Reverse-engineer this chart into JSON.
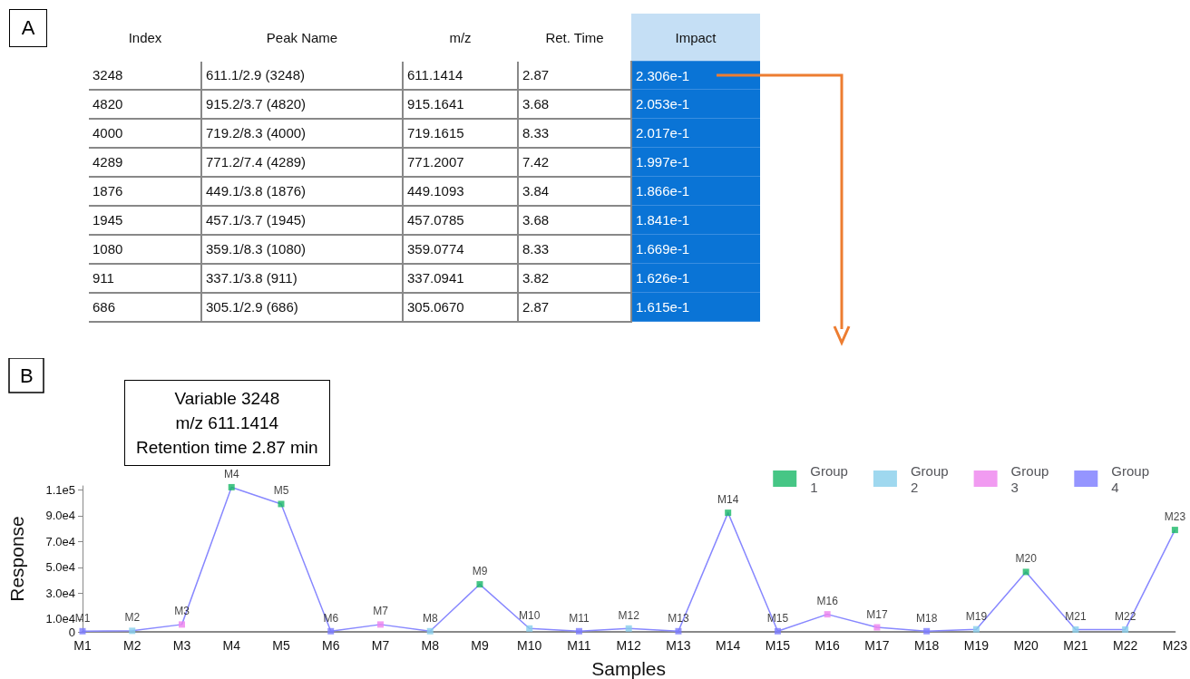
{
  "chart_data": [
    {
      "type": "other",
      "title": "A",
      "categories": [
        "Index",
        "Peak Name",
        "m/z",
        "Ret. Time",
        "Impact"
      ],
      "cell_labels": [
        [
          "3248",
          "611.1/2.9 (3248)",
          "611.1414",
          "2.87",
          "2.306e-1"
        ],
        [
          "4820",
          "915.2/3.7 (4820)",
          "915.1641",
          "3.68",
          "2.053e-1"
        ],
        [
          "4000",
          "719.2/8.3 (4000)",
          "719.1615",
          "8.33",
          "2.017e-1"
        ],
        [
          "4289",
          "771.2/7.4 (4289)",
          "771.2007",
          "7.42",
          "1.997e-1"
        ],
        [
          "1876",
          "449.1/3.8 (1876)",
          "449.1093",
          "3.84",
          "1.866e-1"
        ],
        [
          "1945",
          "457.1/3.7 (1945)",
          "457.0785",
          "3.68",
          "1.841e-1"
        ],
        [
          "1080",
          "359.1/8.3 (1080)",
          "359.0774",
          "8.33",
          "1.669e-1"
        ],
        [
          "911",
          "337.1/3.8 (911)",
          "337.0941",
          "3.82",
          "1.626e-1"
        ],
        [
          "686",
          "305.1/2.9 (686)",
          "305.0670",
          "2.87",
          "1.615e-1"
        ]
      ]
    },
    {
      "type": "line",
      "title": "B",
      "xlabel": "Samples",
      "ylabel": "Response",
      "annotations": [
        "Variable 3248",
        "m/z 611.1414",
        "Retention time 2.87 min"
      ],
      "categories": [
        "M1",
        "M2",
        "M3",
        "M4",
        "M5",
        "M6",
        "M7",
        "M8",
        "M9",
        "M10",
        "M11",
        "M12",
        "M13",
        "M14",
        "M15",
        "M16",
        "M17",
        "M18",
        "M19",
        "M20",
        "M21",
        "M22",
        "M23"
      ],
      "ylim": [
        0,
        113000
      ],
      "yticks": [
        {
          "value": 0,
          "label": "0"
        },
        {
          "value": 10000,
          "label": "1.0e4"
        },
        {
          "value": 30000,
          "label": "3.0e4"
        },
        {
          "value": 50000,
          "label": "5.0e4"
        },
        {
          "value": 70000,
          "label": "7.0e4"
        },
        {
          "value": 90000,
          "label": "9.0e4"
        },
        {
          "value": 110000,
          "label": "1.1e5"
        }
      ],
      "grid": false,
      "legend": "top right",
      "series": [
        {
          "type": "line",
          "color": "#8888ff",
          "marker": "none",
          "values": [
            500,
            800,
            5700,
            112000,
            99000,
            500,
            5700,
            500,
            36800,
            2600,
            500,
            2600,
            500,
            92200,
            500,
            13600,
            3500,
            500,
            2000,
            46400,
            1800,
            1800,
            78900
          ]
        },
        {
          "type": "scatter",
          "name": "Group 1",
          "color": "#18b866",
          "marker": "square",
          "x": [
            "M4",
            "M5",
            "M9",
            "M14",
            "M20",
            "M23"
          ],
          "values": [
            112000,
            99000,
            36800,
            92200,
            46400,
            78900
          ],
          "value_labels": [
            "M4",
            "M5",
            "M9",
            "M14",
            "M20",
            "M23"
          ]
        },
        {
          "type": "scatter",
          "name": "Group 2",
          "color": "#87ceeb",
          "marker": "square",
          "x": [
            "M2",
            "M8",
            "M10",
            "M12",
            "M19",
            "M21",
            "M22"
          ],
          "values": [
            800,
            500,
            2600,
            2600,
            2000,
            1800,
            1800
          ],
          "value_labels": [
            "M2",
            "M8",
            "M10",
            "M12",
            "M19",
            "M21",
            "M22"
          ]
        },
        {
          "type": "scatter",
          "name": "Group 3",
          "color": "#ee82ee",
          "marker": "square",
          "x": [
            "M3",
            "M7",
            "M16",
            "M17"
          ],
          "values": [
            5700,
            5700,
            13600,
            3500
          ],
          "value_labels": [
            "M3",
            "M7",
            "M16",
            "M17"
          ]
        },
        {
          "type": "scatter",
          "name": "Group 4",
          "color": "#7b7bff",
          "marker": "square",
          "x": [
            "M1",
            "M6",
            "M11",
            "M13",
            "M15",
            "M18"
          ],
          "values": [
            500,
            500,
            500,
            500,
            500,
            500
          ],
          "value_labels": [
            "M1",
            "M6",
            "M11",
            "M13",
            "M15",
            "M18"
          ]
        }
      ]
    }
  ]
}
